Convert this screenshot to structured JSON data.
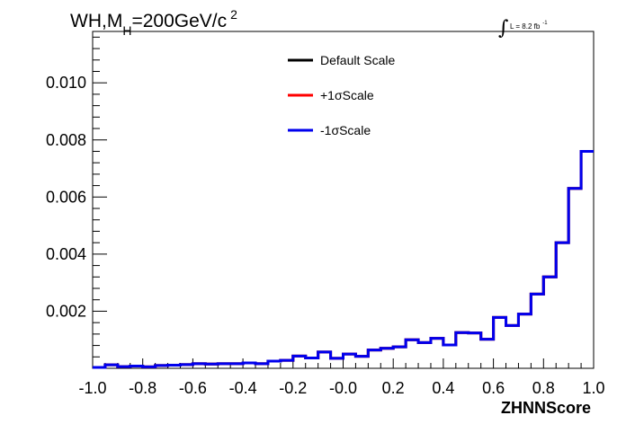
{
  "chart_data": {
    "type": "line",
    "title": {
      "main": "WH,M",
      "sub": "H",
      "rest": "=200GeV/c",
      "sup": "2"
    },
    "lumi": {
      "symbol": "∫",
      "text": "L = 8.2 fb",
      "sup": "-1"
    },
    "xlabel": "ZHNNScore",
    "ylabel": "",
    "xlim": [
      -1.0,
      1.0
    ],
    "ylim": [
      0,
      0.0118
    ],
    "xticks": [
      "-1.0",
      "-0.8",
      "-0.6",
      "-0.4",
      "-0.2",
      "-0.0",
      "0.2",
      "0.4",
      "0.6",
      "0.8",
      "1.0"
    ],
    "yticks": [
      "0.002",
      "0.004",
      "0.006",
      "0.008",
      "0.010"
    ],
    "bin_edges_start": -1.0,
    "bin_width": 0.05,
    "series": [
      {
        "name": "Default Scale",
        "color": "#000000",
        "values": [
          3e-05,
          0.00012,
          6e-05,
          8e-05,
          5e-05,
          0.0001,
          0.00011,
          0.00013,
          0.00016,
          0.00015,
          0.00016,
          0.00016,
          0.00019,
          0.00016,
          0.00025,
          0.00028,
          0.00043,
          0.00036,
          0.00057,
          0.00035,
          0.0005,
          0.00042,
          0.00064,
          0.0007,
          0.00075,
          0.001,
          0.0009,
          0.00105,
          0.00082,
          0.00125,
          0.00124,
          0.00102,
          0.00178,
          0.0015,
          0.0019,
          0.0026,
          0.0032,
          0.0044,
          0.0063,
          0.0076
        ]
      },
      {
        "name": "+1σScale",
        "color": "#ff0000",
        "values": [
          3e-05,
          0.00012,
          6e-05,
          8e-05,
          5e-05,
          0.0001,
          0.00011,
          0.00013,
          0.00016,
          0.00015,
          0.00016,
          0.00016,
          0.00019,
          0.00016,
          0.00025,
          0.00028,
          0.00043,
          0.00036,
          0.00057,
          0.00035,
          0.0005,
          0.00042,
          0.00064,
          0.0007,
          0.00075,
          0.001,
          0.0009,
          0.00105,
          0.00082,
          0.00125,
          0.00124,
          0.00102,
          0.00178,
          0.0015,
          0.0019,
          0.0026,
          0.0032,
          0.0044,
          0.0063,
          0.0076
        ]
      },
      {
        "name": "-1σScale",
        "color": "#0000ee",
        "values": [
          3e-05,
          0.00012,
          6e-05,
          8e-05,
          5e-05,
          0.0001,
          0.00011,
          0.00013,
          0.00016,
          0.00015,
          0.00016,
          0.00016,
          0.00019,
          0.00016,
          0.00025,
          0.00028,
          0.00043,
          0.00036,
          0.00057,
          0.00035,
          0.0005,
          0.00042,
          0.00064,
          0.0007,
          0.00075,
          0.001,
          0.0009,
          0.00105,
          0.00082,
          0.00125,
          0.00124,
          0.00102,
          0.00178,
          0.0015,
          0.0019,
          0.0026,
          0.0032,
          0.0044,
          0.0063,
          0.0076
        ]
      }
    ],
    "grid": false,
    "legend_position": "top-center"
  }
}
